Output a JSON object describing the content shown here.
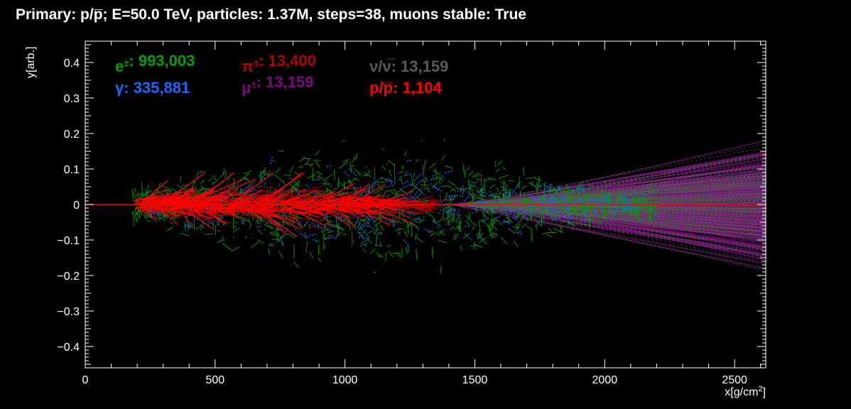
{
  "chart_data": {
    "type": "scatter",
    "title": "Primary: p/p̅; E=50.0 TeV, particles: 1.37M, steps=38, muons stable: True",
    "xlabel": "x[g/cm",
    "xlabel_sup": "2",
    "xlabel_end": "]",
    "ylabel": "y[arb.]",
    "xlim": [
      0,
      2620
    ],
    "ylim": [
      -0.46,
      0.46
    ],
    "x_ticks": [
      0,
      500,
      1000,
      1500,
      2000,
      2500
    ],
    "x_tick_labels": [
      "0",
      "500",
      "1000",
      "1500",
      "2000",
      "2500"
    ],
    "y_ticks": [
      0.4,
      0.3,
      0.2,
      0.1,
      0,
      -0.1,
      -0.2,
      -0.3,
      -0.4
    ],
    "y_tick_labels": [
      "0.4",
      "0.3",
      "0.2",
      "0.1",
      "0",
      "−0.1",
      "−0.2",
      "−0.3",
      "−0.4"
    ],
    "grid": false,
    "legend_position": "top-left",
    "series": [
      {
        "name": "e±",
        "symbol": "e",
        "sup": "±",
        "count": "993,003",
        "color": "#00a000",
        "x_range": [
          180,
          2200
        ],
        "spread": 0.26
      },
      {
        "name": "γ",
        "symbol": "γ",
        "sup": "",
        "count": "335,881",
        "color": "#1a66ff",
        "x_range": [
          200,
          2150
        ],
        "spread": 0.2
      },
      {
        "name": "π±",
        "symbol": "π",
        "sup": "±",
        "count": "13,400",
        "color": "#b00000",
        "x_range": [
          180,
          1300
        ],
        "spread": 0.08
      },
      {
        "name": "μ±",
        "symbol": "μ",
        "sup": "±",
        "count": "13,159",
        "color": "#7a0a7a",
        "x_range": [
          1400,
          2620
        ],
        "spread": 0.17
      },
      {
        "name": "ν/ν̅",
        "symbol": "ν/ν̅",
        "sup": "",
        "count": "13,159",
        "color": "#5a5a5a",
        "x_range": [
          1400,
          2620
        ],
        "spread": 0.16
      },
      {
        "name": "p/p̅",
        "symbol": "p/p̅",
        "sup": "",
        "count": "1,104",
        "color": "#ff0000",
        "x_range": [
          180,
          2620
        ],
        "spread": 0.07
      }
    ]
  }
}
